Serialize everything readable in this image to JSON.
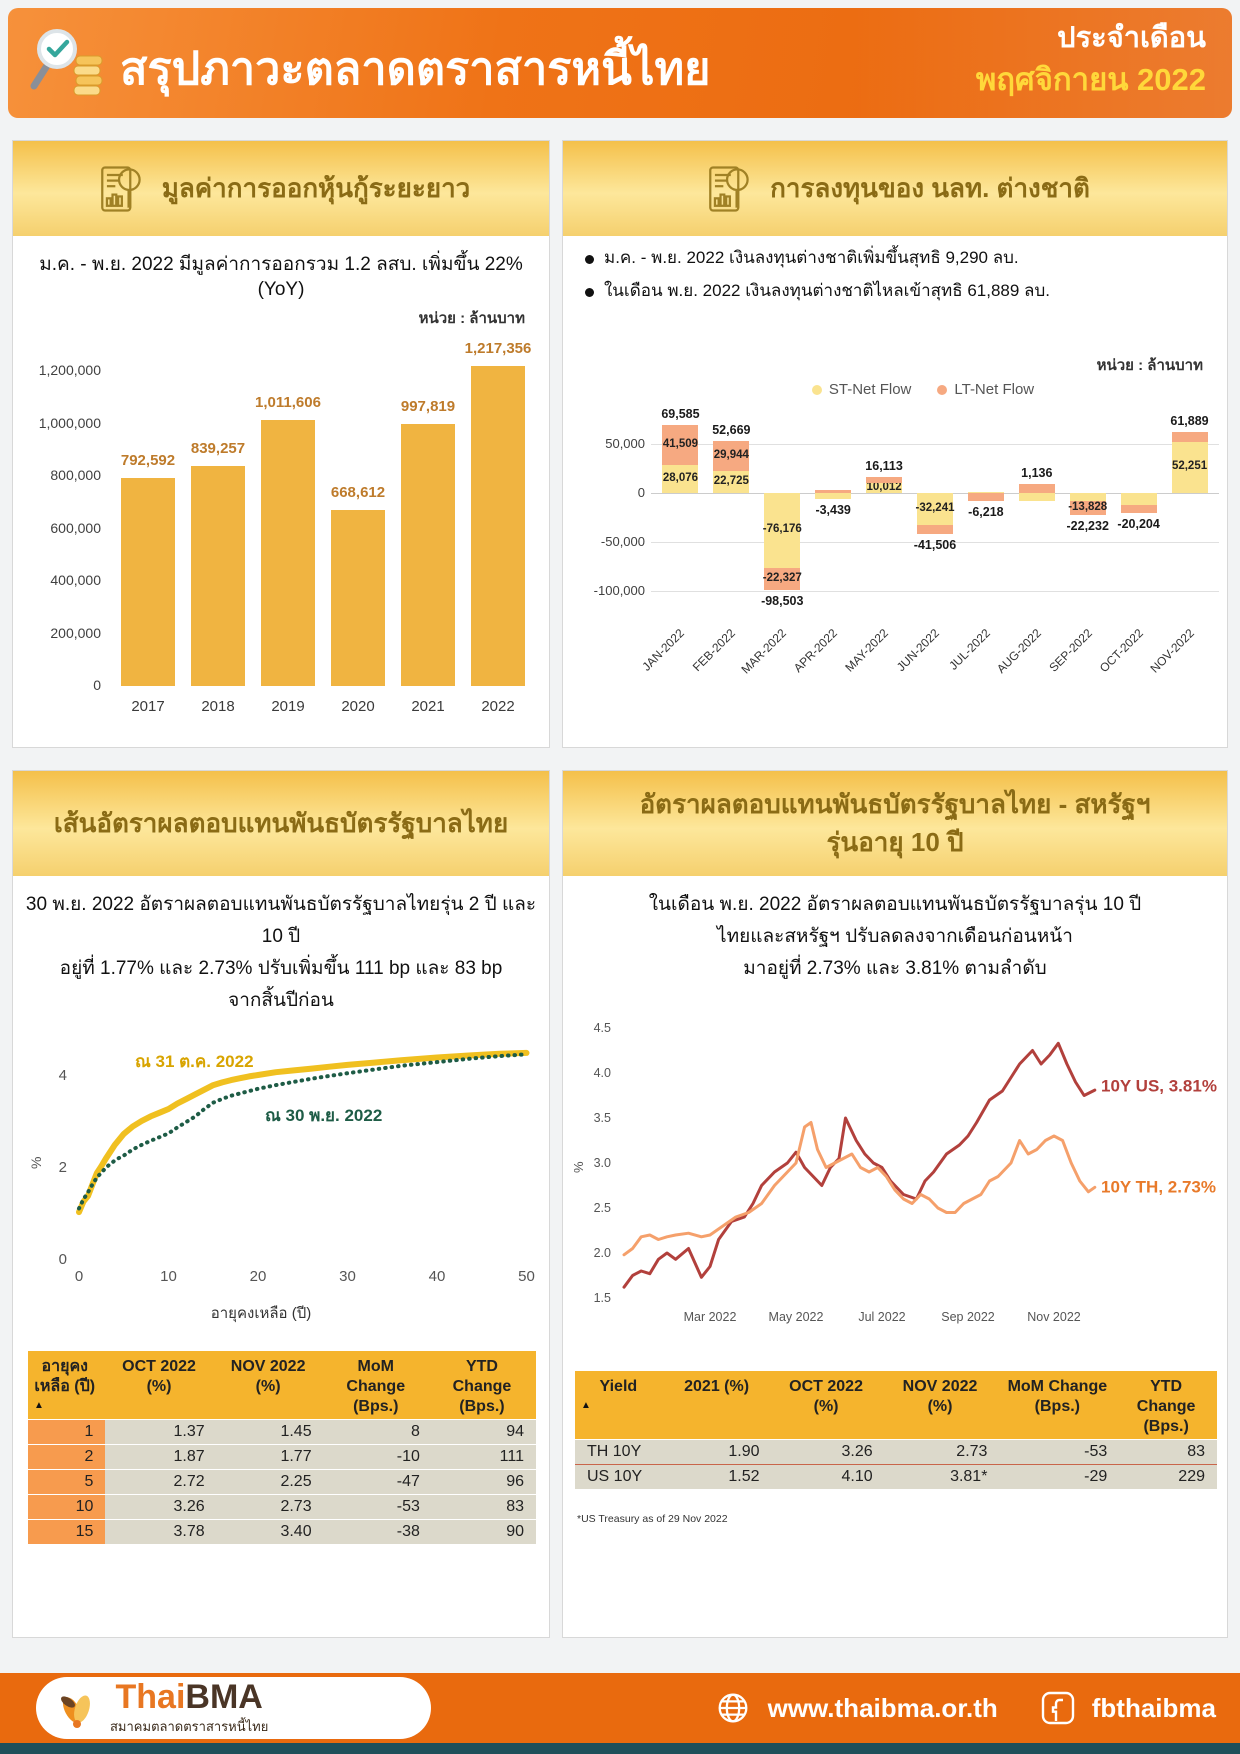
{
  "header": {
    "title": "สรุปภาวะตลาดตราสารหนี้ไทย",
    "period_label": "ประจำเดือน",
    "period_value": "พฤศจิกายน 2022"
  },
  "panel_issuance": {
    "title": "มูลค่าการออกหุ้นกู้ระยะยาว",
    "subtitle": "ม.ค. - พ.ย. 2022 มีมูลค่าการออกรวม 1.2 ลสบ. เพิ่มขึ้น 22% (YoY)",
    "unit": "หน่วย : ล้านบาท"
  },
  "panel_foreign": {
    "title": "การลงทุนของ นลท. ต่างชาติ",
    "bullets": [
      "ม.ค. - พ.ย. 2022 เงินลงทุนต่างชาติเพิ่มขึ้นสุทธิ 9,290 ลบ.",
      "ในเดือน พ.ย. 2022 เงินลงทุนต่างชาติไหลเข้าสุทธิ 61,889 ลบ."
    ],
    "unit": "หน่วย : ล้านบาท"
  },
  "panel_yield_curve": {
    "title": "เส้นอัตราผลตอบแทนพันธบัตรรัฐบาลไทย",
    "subtitle_lines": [
      "30 พ.ย. 2022 อัตราผลตอบแทนพันธบัตรรัฐบาลไทยรุ่น 2 ปี และ 10 ปี",
      "อยู่ที่ 1.77% และ 2.73% ปรับเพิ่มขึ้น 111 bp และ 83 bp",
      "จากสิ้นปีก่อน"
    ],
    "series_labels": {
      "oct": "ณ 31 ต.ค. 2022",
      "nov": "ณ 30 พ.ย. 2022"
    },
    "xlabel": "อายุคงเหลือ (ปี)",
    "ylabel": "%",
    "table": {
      "sort_icon": "▲",
      "headers": [
        "อายุคง\nเหลือ (ปี)",
        "OCT 2022 (%)",
        "NOV 2022 (%)",
        "MoM Change\n(Bps.)",
        "YTD Change\n(Bps.)"
      ],
      "rows": [
        [
          "1",
          "1.37",
          "1.45",
          "8",
          "94"
        ],
        [
          "2",
          "1.87",
          "1.77",
          "-10",
          "111"
        ],
        [
          "5",
          "2.72",
          "2.25",
          "-47",
          "96"
        ],
        [
          "10",
          "3.26",
          "2.73",
          "-53",
          "83"
        ],
        [
          "15",
          "3.78",
          "3.40",
          "-38",
          "90"
        ]
      ]
    }
  },
  "panel_10y": {
    "title_lines": [
      "อัตราผลตอบแทนพันธบัตรรัฐบาลไทย - สหรัฐฯ",
      "รุ่นอายุ 10 ปี"
    ],
    "subtitle_lines": [
      "ในเดือน พ.ย. 2022 อัตราผลตอบแทนพันธบัตรรัฐบาลรุ่น 10 ปี",
      "ไทยและสหรัฐฯ ปรับลดลงจากเดือนก่อนหน้า",
      "มาอยู่ที่ 2.73% และ 3.81% ตามลำดับ"
    ],
    "annotations": {
      "us": "10Y US, 3.81%",
      "th": "10Y TH, 2.73%"
    },
    "ylabel": "%",
    "table": {
      "sort_icon": "▲",
      "headers": [
        "Yield",
        "2021 (%)",
        "OCT 2022 (%)",
        "NOV 2022 (%)",
        "MoM Change\n(Bps.)",
        "YTD Change\n(Bps.)"
      ],
      "rows": [
        [
          "TH 10Y",
          "1.90",
          "3.26",
          "2.73",
          "-53",
          "83"
        ],
        [
          "US 10Y",
          "1.52",
          "4.10",
          "3.81*",
          "-29",
          "229"
        ]
      ]
    },
    "footnote": "*US Treasury as of 29 Nov 2022"
  },
  "footer": {
    "logo_thai": "Thai",
    "logo_bma": "BMA",
    "logo_subtitle": "สมาคมตลาดตราสารหนี้ไทย",
    "website": "www.thaibma.or.th",
    "facebook": "fbthaibma"
  },
  "chart_data": [
    {
      "type": "bar",
      "title": "มูลค่าการออกหุ้นกู้ระยะยาว",
      "unit": "หน่วย : ล้านบาท",
      "categories": [
        "2017",
        "2018",
        "2019",
        "2020",
        "2021",
        "2022"
      ],
      "values": [
        792592,
        839257,
        1011606,
        668612,
        997819,
        1217356
      ],
      "labels": [
        "792,592",
        "839,257",
        "1,011,606",
        "668,612",
        "997,819",
        "1,217,356"
      ],
      "bar_color": "#F0B441",
      "label_color": "#BE7B2B",
      "ylim": [
        0,
        1300000
      ],
      "y_ticks": [
        {
          "v": 0,
          "t": "0"
        },
        {
          "v": 200000,
          "t": "200,000"
        },
        {
          "v": 400000,
          "t": "400,000"
        },
        {
          "v": 600000,
          "t": "600,000"
        },
        {
          "v": 800000,
          "t": "800,000"
        },
        {
          "v": 1000000,
          "t": "1,000,000"
        },
        {
          "v": 1200000,
          "t": "1,200,000"
        }
      ]
    },
    {
      "type": "stacked-bar",
      "title": "การลงทุนของ นลท. ต่างชาติ",
      "unit": "หน่วย : ล้านบาท",
      "legend_position": "top",
      "categories": [
        "JAN-2022",
        "FEB-2022",
        "MAR-2022",
        "APR-2022",
        "MAY-2022",
        "JUN-2022",
        "JUL-2022",
        "AUG-2022",
        "SEP-2022",
        "OCT-2022",
        "NOV-2022"
      ],
      "series": [
        {
          "name": "ST-Net Flow",
          "color": "#FAE38F",
          "values": [
            28076,
            22725,
            -76176,
            -6500,
            10012,
            -32241,
            1500,
            -8000,
            -8404,
            -12000,
            52251
          ],
          "labels": [
            "28,076",
            "22,725",
            "-76,176",
            null,
            "10,012",
            "-32,241",
            null,
            null,
            null,
            null,
            "52,251"
          ]
        },
        {
          "name": "LT-Net Flow",
          "color": "#F6A981",
          "values": [
            41509,
            29944,
            -22327,
            3061,
            6101,
            -9265,
            -7718,
            9136,
            -13828,
            -8204,
            9638
          ],
          "labels": [
            "41,509",
            "29,944",
            "-22,327",
            null,
            null,
            null,
            null,
            null,
            "-13,828",
            null,
            null
          ]
        }
      ],
      "totals": [
        69585,
        52669,
        -98503,
        -3439,
        16113,
        -41506,
        -6218,
        1136,
        -22232,
        -20204,
        61889
      ],
      "total_labels": [
        "69,585",
        "52,669",
        "-98,503",
        "-3,439",
        "16,113",
        "-41,506",
        "-6,218",
        "1,136",
        "-22,232",
        "-20,204",
        "61,889"
      ],
      "ylim": [
        -115000,
        85000
      ],
      "y_ticks": [
        {
          "v": 50000,
          "t": "50,000"
        },
        {
          "v": 0,
          "t": "0"
        },
        {
          "v": -50000,
          "t": "-50,000"
        },
        {
          "v": -100000,
          "t": "-100,000"
        }
      ]
    },
    {
      "type": "line",
      "title": "เส้นอัตราผลตอบแทนพันธบัตรรัฐบาลไทย",
      "xlabel": "อายุคงเหลือ (ปี)",
      "ylabel": "%",
      "xlim": [
        0,
        50
      ],
      "ylim": [
        0,
        5
      ],
      "x_ticks": [
        0,
        10,
        20,
        30,
        40,
        50
      ],
      "y_ticks": [
        0,
        2,
        4
      ],
      "series": [
        {
          "name": "ณ 31 ต.ค. 2022",
          "color": "#F0C020",
          "style": "solid",
          "points": [
            [
              0,
              1.02
            ],
            [
              0.5,
              1.25
            ],
            [
              1,
              1.37
            ],
            [
              1.5,
              1.62
            ],
            [
              2,
              1.87
            ],
            [
              2.5,
              2.02
            ],
            [
              3,
              2.18
            ],
            [
              3.5,
              2.33
            ],
            [
              4,
              2.48
            ],
            [
              4.5,
              2.6
            ],
            [
              5,
              2.72
            ],
            [
              6,
              2.88
            ],
            [
              7,
              3.0
            ],
            [
              8,
              3.1
            ],
            [
              9,
              3.18
            ],
            [
              10,
              3.26
            ],
            [
              11,
              3.38
            ],
            [
              12,
              3.48
            ],
            [
              13,
              3.58
            ],
            [
              14,
              3.68
            ],
            [
              15,
              3.78
            ],
            [
              16,
              3.84
            ],
            [
              17,
              3.89
            ],
            [
              18,
              3.93
            ],
            [
              19,
              3.97
            ],
            [
              20,
              4.0
            ],
            [
              22,
              4.06
            ],
            [
              24,
              4.1
            ],
            [
              26,
              4.14
            ],
            [
              28,
              4.18
            ],
            [
              30,
              4.22
            ],
            [
              33,
              4.27
            ],
            [
              36,
              4.32
            ],
            [
              40,
              4.38
            ],
            [
              44,
              4.43
            ],
            [
              47,
              4.46
            ],
            [
              50,
              4.48
            ]
          ]
        },
        {
          "name": "ณ 30 พ.ย. 2022",
          "color": "#1E5C46",
          "style": "dotted",
          "points": [
            [
              0,
              1.1
            ],
            [
              0.5,
              1.3
            ],
            [
              1,
              1.45
            ],
            [
              1.5,
              1.62
            ],
            [
              2,
              1.77
            ],
            [
              2.5,
              1.88
            ],
            [
              3,
              1.98
            ],
            [
              3.5,
              2.07
            ],
            [
              4,
              2.14
            ],
            [
              4.5,
              2.2
            ],
            [
              5,
              2.25
            ],
            [
              6,
              2.38
            ],
            [
              7,
              2.48
            ],
            [
              8,
              2.57
            ],
            [
              9,
              2.65
            ],
            [
              10,
              2.73
            ],
            [
              11,
              2.86
            ],
            [
              12,
              2.98
            ],
            [
              13,
              3.1
            ],
            [
              14,
              3.26
            ],
            [
              15,
              3.4
            ],
            [
              16,
              3.48
            ],
            [
              17,
              3.55
            ],
            [
              18,
              3.6
            ],
            [
              19,
              3.65
            ],
            [
              20,
              3.7
            ],
            [
              22,
              3.78
            ],
            [
              24,
              3.85
            ],
            [
              26,
              3.92
            ],
            [
              28,
              3.98
            ],
            [
              30,
              4.04
            ],
            [
              33,
              4.12
            ],
            [
              36,
              4.2
            ],
            [
              40,
              4.28
            ],
            [
              44,
              4.36
            ],
            [
              47,
              4.41
            ],
            [
              50,
              4.45
            ]
          ]
        }
      ]
    },
    {
      "type": "line",
      "title": "อัตราผลตอบแทนพันธบัตรรัฐบาลไทย - สหรัฐฯ รุ่นอายุ 10 ปี",
      "ylabel": "%",
      "ylim": [
        1.5,
        4.5
      ],
      "y_ticks": [
        1.5,
        2.0,
        2.5,
        3.0,
        3.5,
        4.0,
        4.5
      ],
      "x_tick_labels": [
        "Mar 2022",
        "May 2022",
        "Jul 2022",
        "Sep 2022",
        "Nov 2022"
      ],
      "x_tick_positions": [
        2,
        4,
        6,
        8,
        10
      ],
      "series": [
        {
          "name": "10Y US",
          "color": "#B2403C",
          "end_value": 3.81,
          "points": [
            [
              0,
              1.62
            ],
            [
              0.2,
              1.75
            ],
            [
              0.4,
              1.8
            ],
            [
              0.6,
              1.77
            ],
            [
              0.8,
              1.93
            ],
            [
              1.0,
              2.0
            ],
            [
              1.2,
              1.93
            ],
            [
              1.5,
              2.05
            ],
            [
              1.8,
              1.73
            ],
            [
              2.0,
              1.85
            ],
            [
              2.2,
              2.15
            ],
            [
              2.5,
              2.35
            ],
            [
              2.8,
              2.4
            ],
            [
              3.0,
              2.55
            ],
            [
              3.2,
              2.75
            ],
            [
              3.5,
              2.9
            ],
            [
              3.8,
              3.0
            ],
            [
              4.0,
              3.12
            ],
            [
              4.2,
              2.95
            ],
            [
              4.4,
              2.85
            ],
            [
              4.6,
              2.75
            ],
            [
              4.8,
              2.95
            ],
            [
              5.0,
              3.05
            ],
            [
              5.15,
              3.5
            ],
            [
              5.4,
              3.25
            ],
            [
              5.6,
              3.1
            ],
            [
              5.8,
              3.0
            ],
            [
              6.0,
              2.95
            ],
            [
              6.2,
              2.8
            ],
            [
              6.5,
              2.65
            ],
            [
              6.8,
              2.6
            ],
            [
              7.0,
              2.8
            ],
            [
              7.2,
              2.9
            ],
            [
              7.5,
              3.1
            ],
            [
              7.8,
              3.2
            ],
            [
              8.0,
              3.3
            ],
            [
              8.2,
              3.45
            ],
            [
              8.5,
              3.7
            ],
            [
              8.8,
              3.8
            ],
            [
              9.0,
              3.95
            ],
            [
              9.2,
              4.1
            ],
            [
              9.5,
              4.25
            ],
            [
              9.7,
              4.1
            ],
            [
              9.9,
              4.2
            ],
            [
              10.1,
              4.33
            ],
            [
              10.3,
              4.1
            ],
            [
              10.5,
              3.9
            ],
            [
              10.7,
              3.75
            ],
            [
              10.95,
              3.81
            ]
          ]
        },
        {
          "name": "10Y TH",
          "color": "#F5A06B",
          "end_value": 2.73,
          "points": [
            [
              0,
              1.98
            ],
            [
              0.2,
              2.05
            ],
            [
              0.4,
              2.18
            ],
            [
              0.6,
              2.2
            ],
            [
              0.8,
              2.15
            ],
            [
              1.0,
              2.18
            ],
            [
              1.2,
              2.2
            ],
            [
              1.5,
              2.22
            ],
            [
              1.8,
              2.18
            ],
            [
              2.0,
              2.2
            ],
            [
              2.3,
              2.3
            ],
            [
              2.6,
              2.4
            ],
            [
              2.9,
              2.45
            ],
            [
              3.2,
              2.55
            ],
            [
              3.5,
              2.75
            ],
            [
              3.8,
              2.9
            ],
            [
              4.0,
              3.0
            ],
            [
              4.2,
              3.4
            ],
            [
              4.35,
              3.45
            ],
            [
              4.5,
              3.15
            ],
            [
              4.7,
              2.95
            ],
            [
              4.9,
              3.0
            ],
            [
              5.1,
              3.05
            ],
            [
              5.3,
              3.1
            ],
            [
              5.5,
              2.95
            ],
            [
              5.7,
              2.9
            ],
            [
              5.9,
              2.95
            ],
            [
              6.1,
              2.85
            ],
            [
              6.3,
              2.7
            ],
            [
              6.5,
              2.6
            ],
            [
              6.7,
              2.55
            ],
            [
              6.9,
              2.65
            ],
            [
              7.1,
              2.6
            ],
            [
              7.3,
              2.5
            ],
            [
              7.5,
              2.45
            ],
            [
              7.7,
              2.45
            ],
            [
              7.9,
              2.55
            ],
            [
              8.1,
              2.6
            ],
            [
              8.3,
              2.65
            ],
            [
              8.5,
              2.8
            ],
            [
              8.7,
              2.85
            ],
            [
              9.0,
              3.0
            ],
            [
              9.2,
              3.25
            ],
            [
              9.4,
              3.1
            ],
            [
              9.6,
              3.15
            ],
            [
              9.8,
              3.25
            ],
            [
              10.0,
              3.3
            ],
            [
              10.2,
              3.25
            ],
            [
              10.4,
              3.0
            ],
            [
              10.6,
              2.8
            ],
            [
              10.8,
              2.68
            ],
            [
              10.95,
              2.73
            ]
          ]
        }
      ]
    }
  ]
}
